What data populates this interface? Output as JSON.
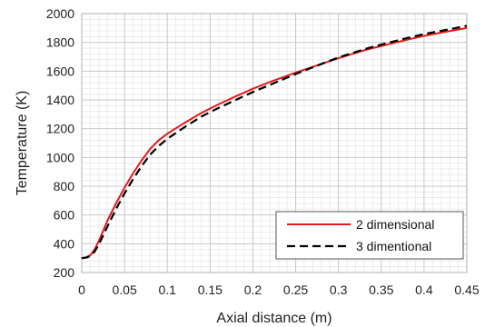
{
  "chart_data": {
    "type": "line",
    "xlabel": "Axial distance (m)",
    "ylabel": "Temperature (K)",
    "xlim": [
      0,
      0.45
    ],
    "ylim": [
      200,
      2000
    ],
    "xticks": [
      "0",
      "0.05",
      "0.1",
      "0.15",
      "0.2",
      "0.25",
      "0.3",
      "0.35",
      "0.4",
      "0.45"
    ],
    "yticks": [
      "200",
      "400",
      "600",
      "800",
      "1000",
      "1200",
      "1400",
      "1600",
      "1800",
      "2000"
    ],
    "grid": true,
    "legend_position": "bottom-right",
    "series": [
      {
        "name": "2 dimensional",
        "color": "#e31a1c",
        "style": "solid",
        "points": [
          [
            0,
            300
          ],
          [
            0.005,
            305
          ],
          [
            0.01,
            320
          ],
          [
            0.015,
            360
          ],
          [
            0.02,
            420
          ],
          [
            0.03,
            560
          ],
          [
            0.04,
            680
          ],
          [
            0.05,
            790
          ],
          [
            0.06,
            890
          ],
          [
            0.07,
            980
          ],
          [
            0.08,
            1060
          ],
          [
            0.09,
            1120
          ],
          [
            0.1,
            1165
          ],
          [
            0.12,
            1240
          ],
          [
            0.14,
            1310
          ],
          [
            0.16,
            1370
          ],
          [
            0.18,
            1425
          ],
          [
            0.2,
            1478
          ],
          [
            0.22,
            1525
          ],
          [
            0.25,
            1590
          ],
          [
            0.28,
            1650
          ],
          [
            0.3,
            1690
          ],
          [
            0.33,
            1745
          ],
          [
            0.35,
            1775
          ],
          [
            0.38,
            1818
          ],
          [
            0.4,
            1845
          ],
          [
            0.42,
            1868
          ],
          [
            0.45,
            1900
          ]
        ]
      },
      {
        "name": "3 dimentional",
        "color": "#000000",
        "style": "dashed",
        "points": [
          [
            0,
            300
          ],
          [
            0.005,
            303
          ],
          [
            0.01,
            315
          ],
          [
            0.015,
            345
          ],
          [
            0.02,
            395
          ],
          [
            0.03,
            520
          ],
          [
            0.04,
            640
          ],
          [
            0.05,
            750
          ],
          [
            0.06,
            850
          ],
          [
            0.07,
            940
          ],
          [
            0.08,
            1020
          ],
          [
            0.09,
            1080
          ],
          [
            0.1,
            1130
          ],
          [
            0.12,
            1210
          ],
          [
            0.14,
            1285
          ],
          [
            0.16,
            1345
          ],
          [
            0.18,
            1400
          ],
          [
            0.2,
            1455
          ],
          [
            0.22,
            1505
          ],
          [
            0.25,
            1580
          ],
          [
            0.28,
            1650
          ],
          [
            0.3,
            1695
          ],
          [
            0.33,
            1752
          ],
          [
            0.35,
            1785
          ],
          [
            0.38,
            1830
          ],
          [
            0.4,
            1858
          ],
          [
            0.42,
            1880
          ],
          [
            0.45,
            1915
          ]
        ]
      }
    ]
  }
}
